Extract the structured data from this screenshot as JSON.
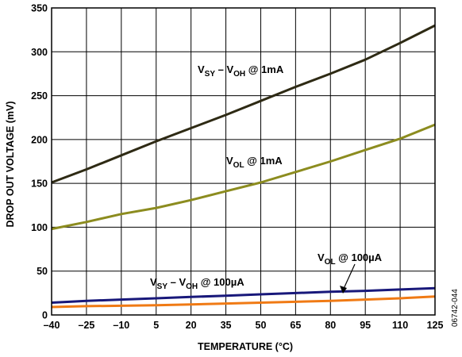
{
  "chart_data": {
    "type": "line",
    "xlabel": "TEMPERATURE (°C)",
    "ylabel": "DROP OUT VOLTAGE (mV)",
    "xlim": [
      -40,
      125
    ],
    "ylim": [
      0,
      350
    ],
    "x_ticks": [
      "–40",
      "–25",
      "–10",
      "5",
      "20",
      "35",
      "50",
      "65",
      "80",
      "95",
      "110",
      "125"
    ],
    "y_ticks": [
      "0",
      "50",
      "100",
      "150",
      "200",
      "250",
      "300",
      "350"
    ],
    "grid": true,
    "figure_id": "06742-044",
    "series": [
      {
        "color": "#2e2a14",
        "x": [
          -40,
          -25,
          -10,
          5,
          20,
          35,
          50,
          65,
          80,
          95,
          110,
          125
        ],
        "y": [
          151,
          166,
          182,
          198,
          213,
          228,
          244,
          260,
          275,
          291,
          310,
          330
        ]
      },
      {
        "color": "#8c8c1f",
        "x": [
          -40,
          -25,
          -10,
          5,
          20,
          35,
          50,
          65,
          80,
          95,
          110,
          125
        ],
        "y": [
          98,
          106,
          115,
          122,
          131,
          141,
          151,
          163,
          175,
          188,
          201,
          217
        ]
      },
      {
        "color": "#18187a",
        "x": [
          -40,
          -25,
          -10,
          5,
          20,
          35,
          50,
          65,
          80,
          95,
          110,
          125
        ],
        "y": [
          14,
          16,
          17.5,
          19,
          20.5,
          22,
          23.5,
          25,
          26.5,
          27.5,
          29,
          30.5
        ]
      },
      {
        "color": "#f07a14",
        "x": [
          -40,
          -25,
          -10,
          5,
          20,
          35,
          50,
          65,
          80,
          95,
          110,
          125
        ],
        "y": [
          9,
          10,
          10.5,
          11,
          12,
          13,
          14,
          15,
          16,
          17.5,
          19,
          21
        ]
      }
    ],
    "annotations": [
      {
        "segments": [
          {
            "t": "V",
            "sub": false
          },
          {
            "t": "SY",
            "sub": true
          },
          {
            "t": " – V",
            "sub": false
          },
          {
            "t": "OH",
            "sub": true
          },
          {
            "t": " @ 1mA",
            "sub": false
          }
        ]
      },
      {
        "segments": [
          {
            "t": "V",
            "sub": false
          },
          {
            "t": "OL",
            "sub": true
          },
          {
            "t": " @ 1mA",
            "sub": false
          }
        ]
      },
      {
        "segments": [
          {
            "t": "V",
            "sub": false
          },
          {
            "t": "OL",
            "sub": true
          },
          {
            "t": " @ 100µA",
            "sub": false
          }
        ]
      },
      {
        "segments": [
          {
            "t": "V",
            "sub": false
          },
          {
            "t": "SY",
            "sub": true
          },
          {
            "t": " – V",
            "sub": false
          },
          {
            "t": "OH",
            "sub": true
          },
          {
            "t": " @ 100µA",
            "sub": false
          }
        ]
      }
    ]
  }
}
